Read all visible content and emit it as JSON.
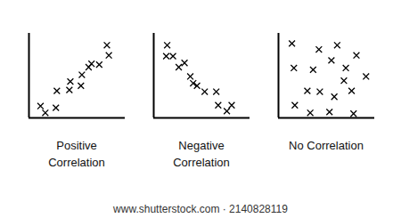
{
  "chart_data": [
    {
      "type": "scatter",
      "title": "Positive Correlation",
      "marker": "x",
      "color": "#000000",
      "tick_labels": false,
      "xlim": [
        0,
        10
      ],
      "ylim": [
        0,
        10
      ],
      "x": [
        1.2,
        1.7,
        2.8,
        2.9,
        4.2,
        4.3,
        5.4,
        5.5,
        6.2,
        6.5,
        7.3,
        8.1,
        8.3
      ],
      "values": [
        1.4,
        0.6,
        1.2,
        3.2,
        3.3,
        4.3,
        3.8,
        5.1,
        6.0,
        6.4,
        6.3,
        8.6,
        7.4
      ]
    },
    {
      "type": "scatter",
      "title": "Negative Correlation",
      "marker": "x",
      "color": "#000000",
      "tick_labels": false,
      "xlim": [
        0,
        10
      ],
      "ylim": [
        0,
        10
      ],
      "x": [
        1.4,
        1.3,
        2.0,
        2.6,
        3.2,
        3.8,
        4.1,
        4.5,
        5.3,
        6.5,
        6.7,
        7.6,
        8.1
      ],
      "values": [
        8.6,
        7.3,
        7.3,
        6.0,
        6.5,
        4.9,
        4.1,
        3.8,
        3.1,
        3.1,
        1.5,
        0.8,
        1.5
      ]
    },
    {
      "type": "scatter",
      "title": "No Correlation",
      "marker": "x",
      "color": "#000000",
      "tick_labels": false,
      "xlim": [
        0,
        10
      ],
      "ylim": [
        0,
        10
      ],
      "x": [
        1.4,
        4.2,
        6.1,
        8.1,
        1.6,
        3.6,
        5.5,
        7.0,
        9.1,
        3.0,
        4.3,
        5.8,
        7.6,
        1.7,
        3.3,
        5.3,
        7.8,
        6.8
      ],
      "values": [
        8.8,
        8.1,
        8.6,
        7.4,
        5.9,
        5.7,
        6.8,
        5.9,
        4.9,
        3.2,
        3.1,
        2.5,
        3.2,
        1.5,
        0.6,
        0.7,
        0.5,
        4.4
      ]
    }
  ],
  "footer": {
    "text": "www.shutterstock.com · 2140828119"
  }
}
